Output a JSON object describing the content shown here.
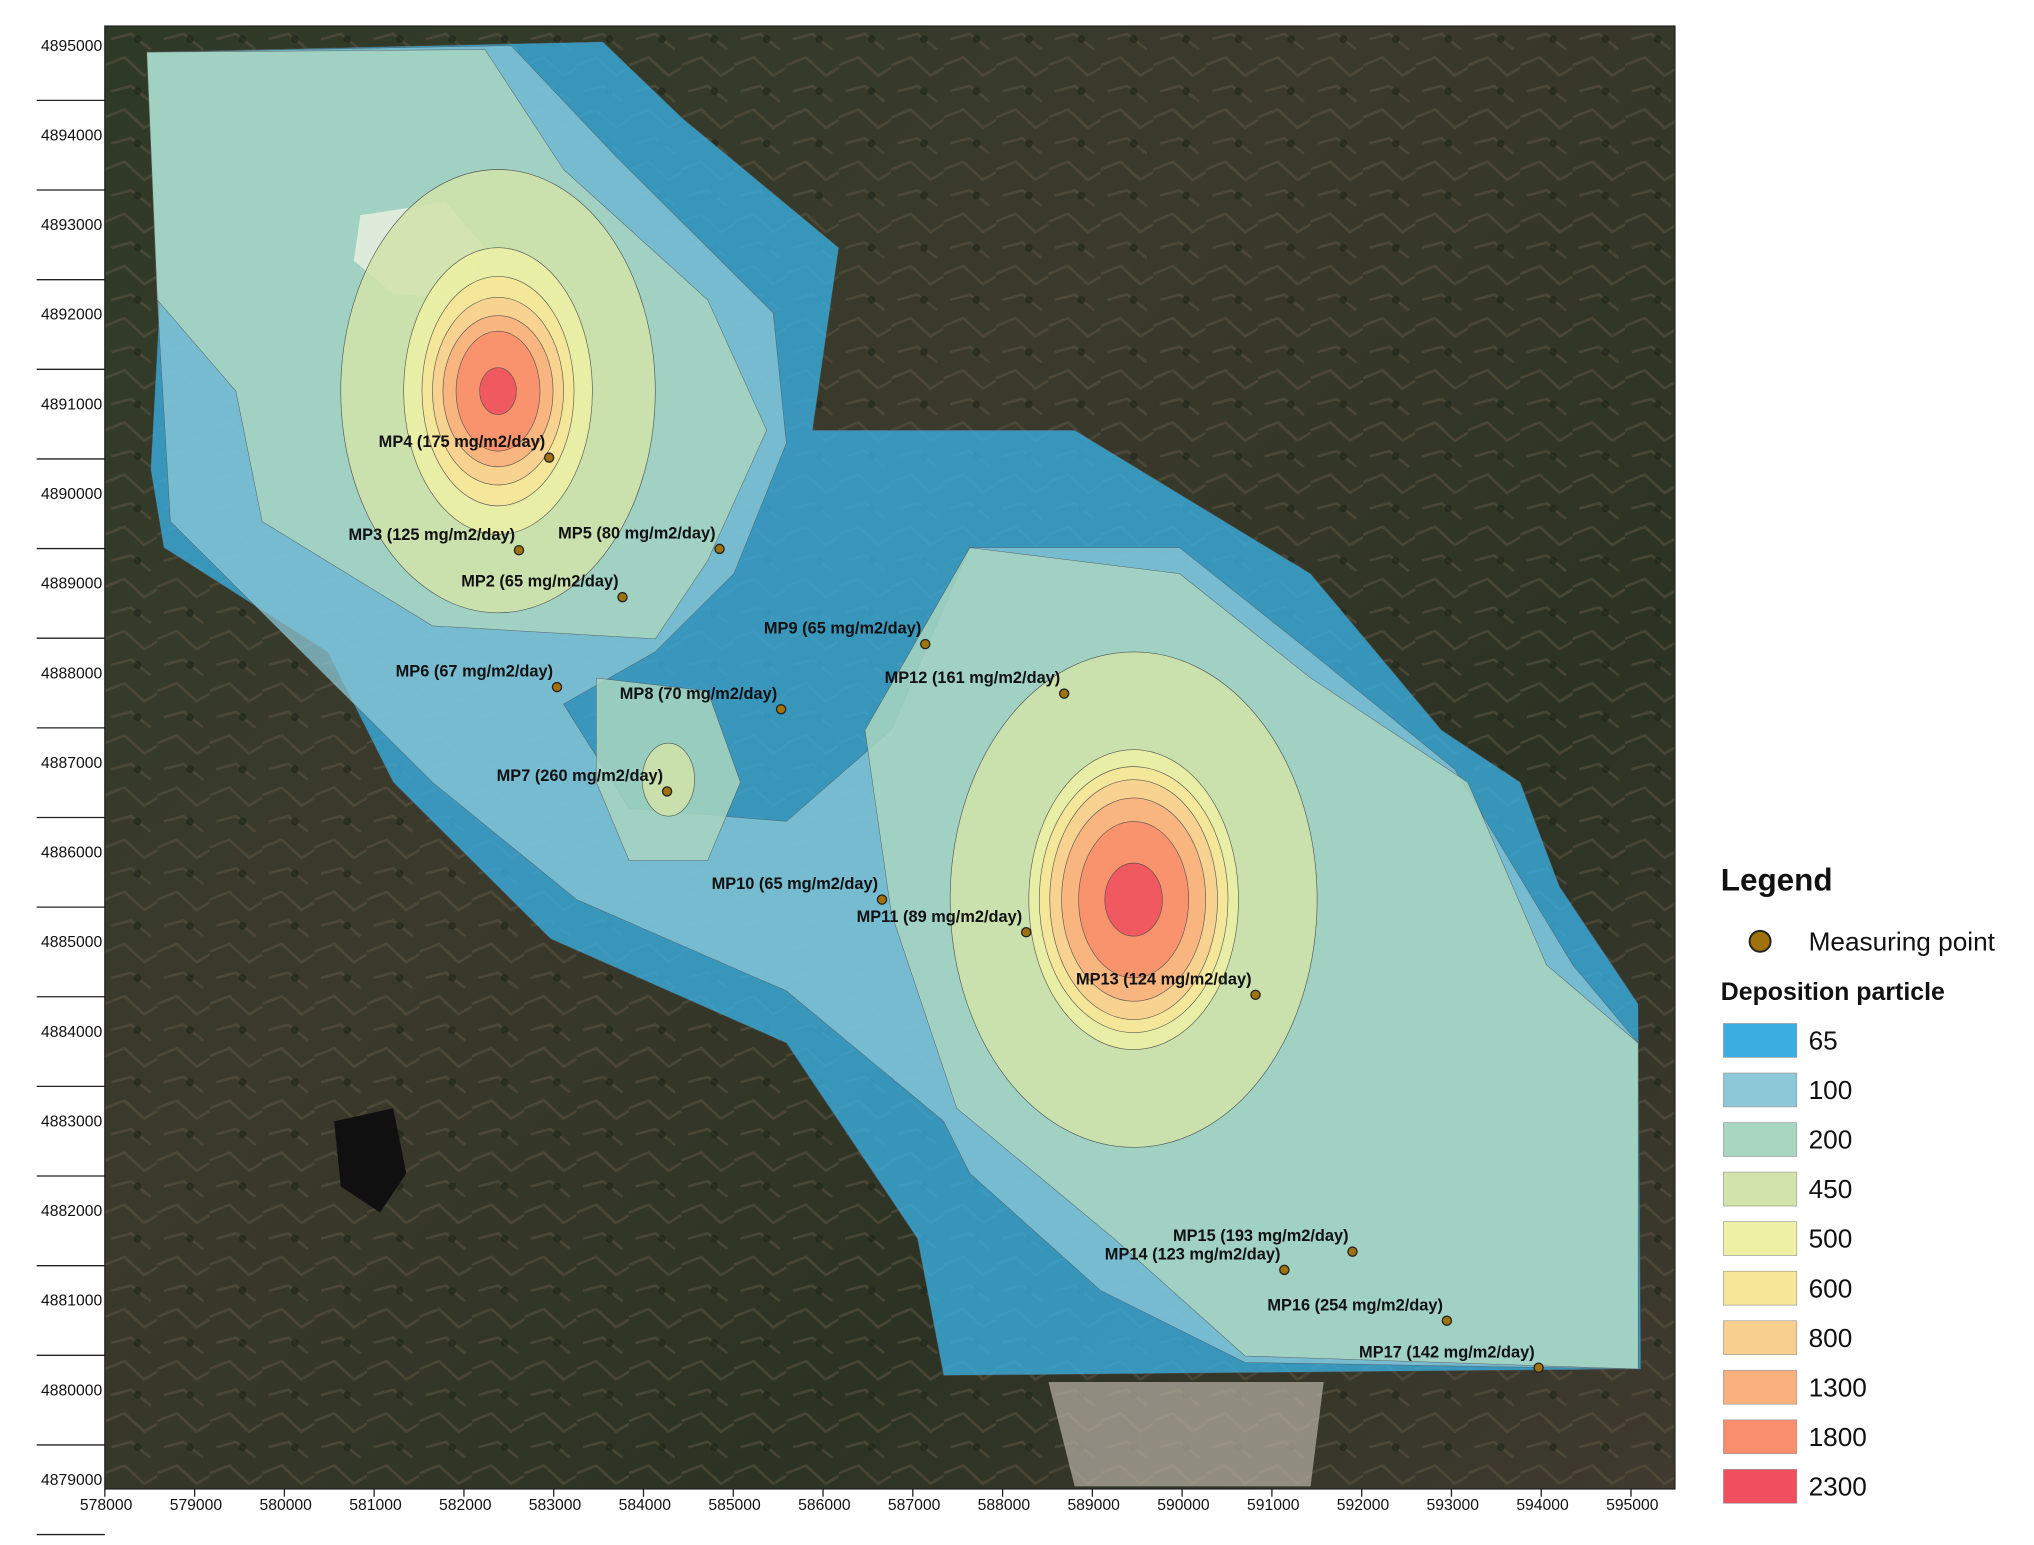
{
  "x_axis": {
    "ticks": [
      "578000",
      "579000",
      "580000",
      "581000",
      "582000",
      "583000",
      "584000",
      "585000",
      "586000",
      "587000",
      "588000",
      "589000",
      "590000",
      "591000",
      "592000",
      "593000",
      "594000",
      "595000"
    ]
  },
  "y_axis": {
    "ticks": [
      "4895000",
      "4894000",
      "4893000",
      "4892000",
      "4891000",
      "4890000",
      "4889000",
      "4888000",
      "4887000",
      "4886000",
      "4885000",
      "4884000",
      "4883000",
      "4882000",
      "4881000",
      "4880000",
      "4879000"
    ]
  },
  "measuring_points": [
    {
      "label": "MP4 (175 mg/m2/day)"
    },
    {
      "label": "MP3 (125 mg/m2/day)"
    },
    {
      "label": "MP5 (80 mg/m2/day)"
    },
    {
      "label": "MP2 (65 mg/m2/day)"
    },
    {
      "label": "MP9 (65 mg/m2/day)"
    },
    {
      "label": "MP6 (67 mg/m2/day)"
    },
    {
      "label": "MP8 (70 mg/m2/day)"
    },
    {
      "label": "MP12 (161 mg/m2/day)"
    },
    {
      "label": "MP7 (260 mg/m2/day)"
    },
    {
      "label": "MP10 (65 mg/m2/day)"
    },
    {
      "label": "MP11 (89 mg/m2/day)"
    },
    {
      "label": "MP13 (124 mg/m2/day)"
    },
    {
      "label": "MP14 (123 mg/m2/day)"
    },
    {
      "label": "MP15 (193 mg/m2/day)"
    },
    {
      "label": "MP16 (254 mg/m2/day)"
    },
    {
      "label": "MP17 (142 mg/m2/day)"
    }
  ],
  "legend": {
    "title": "Legend",
    "point_label": "Measuring point",
    "subtitle": "Deposition particle",
    "classes": [
      {
        "label": "65",
        "color": "#3aaee0"
      },
      {
        "label": "100",
        "color": "#8cc8d8"
      },
      {
        "label": "200",
        "color": "#a8d6c0"
      },
      {
        "label": "450",
        "color": "#d2e4aa"
      },
      {
        "label": "500",
        "color": "#eef1a4"
      },
      {
        "label": "600",
        "color": "#f8e698"
      },
      {
        "label": "800",
        "color": "#f9cf90"
      },
      {
        "label": "1300",
        "color": "#f8b07c"
      },
      {
        "label": "1800",
        "color": "#f88e6c"
      },
      {
        "label": "2300",
        "color": "#f0505e"
      }
    ]
  }
}
